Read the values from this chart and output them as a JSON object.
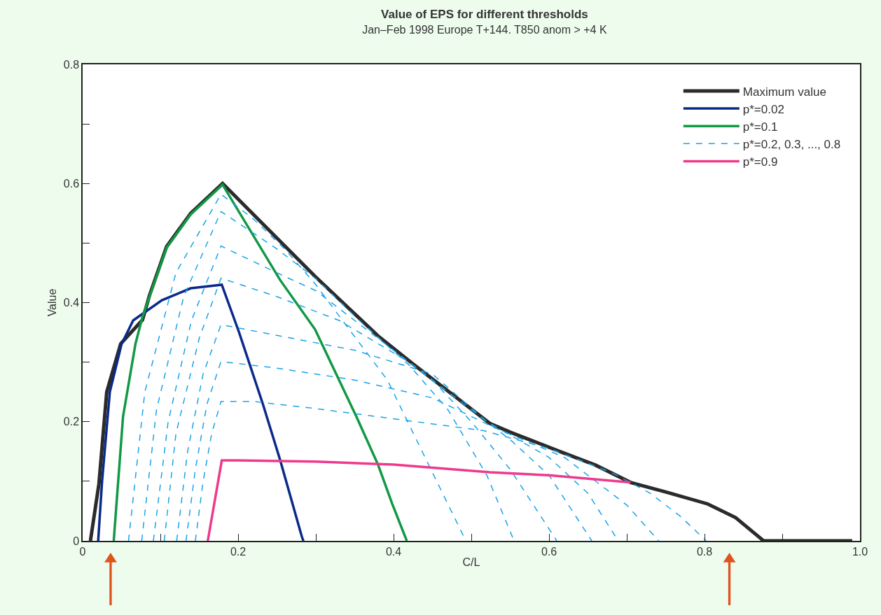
{
  "chart_data": {
    "type": "line",
    "title": "Value of EPS for different thresholds",
    "subtitle": "Jan–Feb 1998 Europe T+144. T850 anom > +4 K",
    "xlabel": "C/L",
    "ylabel": "Value",
    "xlim": [
      0,
      1.0
    ],
    "ylim": [
      0,
      0.8
    ],
    "xticks": [
      0,
      0.2,
      0.4,
      0.6,
      0.8,
      {
        "value": 1.0,
        "label": "1.0"
      },
      {
        "value": 0.1,
        "label": null
      },
      {
        "value": 0.3,
        "label": null
      },
      {
        "value": 0.5,
        "label": null
      },
      {
        "value": 0.7,
        "label": null
      },
      {
        "value": 0.9,
        "label": null
      }
    ],
    "yticks": [
      0,
      0.2,
      0.4,
      0.6,
      0.8,
      {
        "value": 0.1,
        "label": null
      },
      {
        "value": 0.3,
        "label": null
      },
      {
        "value": 0.5,
        "label": null
      },
      {
        "value": 0.7,
        "label": null
      }
    ],
    "legend": "top right",
    "marker": "none",
    "series": [
      {
        "name": "Maximum value",
        "color": "#2b2b2b",
        "line_style": "solid",
        "x": [
          0.01,
          0.021,
          0.031,
          0.049,
          0.077,
          0.086,
          0.108,
          0.139,
          0.18,
          0.299,
          0.38,
          0.425,
          0.524,
          0.551,
          0.614,
          0.66,
          0.705,
          0.75,
          0.804,
          0.84,
          0.876,
          0.99
        ],
        "values": [
          0,
          0.096,
          0.25,
          0.331,
          0.371,
          0.412,
          0.494,
          0.55,
          0.6,
          0.444,
          0.344,
          0.297,
          0.197,
          0.182,
          0.15,
          0.127,
          0.098,
          0.082,
          0.062,
          0.039,
          0,
          0
        ]
      },
      {
        "name": "p*=0.02",
        "color": "#0a2a8a",
        "line_style": "solid",
        "x": [
          0.02,
          0.025,
          0.035,
          0.05,
          0.065,
          0.102,
          0.139,
          0.179,
          0.201,
          0.232,
          0.254,
          0.282,
          0.284
        ],
        "values": [
          0,
          0.1,
          0.25,
          0.33,
          0.37,
          0.404,
          0.424,
          0.43,
          0.351,
          0.229,
          0.136,
          0.007,
          0
        ]
      },
      {
        "name": "p*=0.1",
        "color": "#119944",
        "line_style": "solid",
        "x": [
          0.04,
          0.052,
          0.068,
          0.077,
          0.086,
          0.108,
          0.139,
          0.18,
          0.254,
          0.299,
          0.352,
          0.38,
          0.398,
          0.417
        ],
        "values": [
          0,
          0.209,
          0.331,
          0.376,
          0.41,
          0.492,
          0.548,
          0.598,
          0.438,
          0.355,
          0.209,
          0.128,
          0.063,
          0
        ]
      },
      {
        "name": "p*=0.2, 0.3, ..., 0.8",
        "color": "#1aa3e8",
        "line_style": "dashed",
        "x": [
          0.059,
          0.08,
          0.12,
          0.178,
          0.22,
          0.26,
          0.3,
          0.34,
          0.392,
          0.445,
          0.493
        ],
        "values": [
          0,
          0.25,
          0.45,
          0.582,
          0.54,
          0.49,
          0.43,
          0.36,
          0.27,
          0.128,
          0
        ]
      },
      {
        "color": "#1aa3e8",
        "line_style": "dashed",
        "x": [
          0.076,
          0.095,
          0.13,
          0.178,
          0.25,
          0.3,
          0.36,
          0.42,
          0.47,
          0.52,
          0.555
        ],
        "values": [
          0,
          0.22,
          0.41,
          0.553,
          0.49,
          0.44,
          0.365,
          0.295,
          0.22,
          0.11,
          0
        ]
      },
      {
        "color": "#1aa3e8",
        "line_style": "dashed",
        "x": [
          0.091,
          0.11,
          0.14,
          0.178,
          0.25,
          0.3,
          0.38,
          0.45,
          0.5,
          0.55,
          0.61
        ],
        "values": [
          0,
          0.2,
          0.37,
          0.495,
          0.45,
          0.42,
          0.34,
          0.27,
          0.2,
          0.12,
          0
        ]
      },
      {
        "color": "#1aa3e8",
        "line_style": "dashed",
        "x": [
          0.105,
          0.12,
          0.15,
          0.178,
          0.25,
          0.33,
          0.42,
          0.5,
          0.55,
          0.6,
          0.655
        ],
        "values": [
          0,
          0.18,
          0.34,
          0.441,
          0.41,
          0.37,
          0.3,
          0.22,
          0.17,
          0.11,
          0
        ]
      },
      {
        "color": "#1aa3e8",
        "line_style": "dashed",
        "x": [
          0.121,
          0.135,
          0.155,
          0.178,
          0.25,
          0.35,
          0.45,
          0.52,
          0.6,
          0.65,
          0.689
        ],
        "values": [
          0,
          0.15,
          0.28,
          0.363,
          0.345,
          0.32,
          0.28,
          0.2,
          0.14,
          0.08,
          0
        ]
      },
      {
        "color": "#1aa3e8",
        "line_style": "dashed",
        "x": [
          0.133,
          0.145,
          0.16,
          0.178,
          0.25,
          0.35,
          0.45,
          0.53,
          0.62,
          0.7,
          0.741
        ],
        "values": [
          0,
          0.12,
          0.23,
          0.301,
          0.29,
          0.27,
          0.24,
          0.19,
          0.14,
          0.06,
          0
        ]
      },
      {
        "color": "#1aa3e8",
        "line_style": "dashed",
        "x": [
          0.145,
          0.155,
          0.166,
          0.178,
          0.22,
          0.3,
          0.423,
          0.516,
          0.6,
          0.68,
          0.73,
          0.77,
          0.802
        ],
        "values": [
          0,
          0.1,
          0.18,
          0.234,
          0.234,
          0.222,
          0.201,
          0.185,
          0.155,
          0.115,
          0.08,
          0.04,
          0
        ]
      },
      {
        "name": "p*=0.9",
        "color": "#ee3a8c",
        "line_style": "solid",
        "x": [
          0.161,
          0.179,
          0.2,
          0.3,
          0.4,
          0.524,
          0.6,
          0.705
        ],
        "values": [
          0,
          0.135,
          0.135,
          0.133,
          0.128,
          0.115,
          0.11,
          0.098
        ]
      }
    ]
  }
}
